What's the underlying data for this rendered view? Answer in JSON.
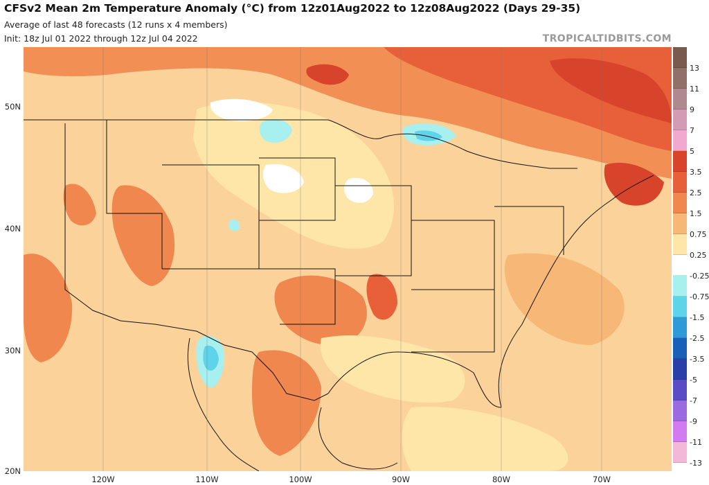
{
  "header": {
    "title": "CFSv2 Mean 2m Temperature Anomaly (°C) from 12z01Aug2022 to 12z08Aug2022 (Days 29-35)",
    "subtitle1": "Average of last 48 forecasts (12 runs x 4 members)",
    "subtitle2": "Init: 18z Jul 01 2022 through 12z Jul 04 2022",
    "brand": "TROPICALTIDBITS.COM"
  },
  "axes": {
    "lat_labels": [
      "50N",
      "40N",
      "30N",
      "20N"
    ],
    "lon_labels": [
      "120W",
      "110W",
      "100W",
      "90W",
      "80W",
      "70W"
    ]
  },
  "colorbar": {
    "labels": [
      "13",
      "11",
      "9",
      "7",
      "5",
      "3.5",
      "2.5",
      "1.5",
      "0.75",
      "0.25",
      "-0.25",
      "-0.75",
      "-1.5",
      "-2.5",
      "-3.5",
      "-5",
      "-7",
      "-9",
      "-11",
      "-13"
    ],
    "colors": [
      "#7a5a4e",
      "#92706a",
      "#b08890",
      "#d49bb6",
      "#f2a9d0",
      "#d8432c",
      "#e8603a",
      "#f0874e",
      "#f7b777",
      "#fde6a8",
      "#ffffff",
      "#a8efef",
      "#5ed3ea",
      "#2f9ad8",
      "#1a5fb8",
      "#2b3fa8",
      "#5a4cc4",
      "#9a6ae0",
      "#d27af0",
      "#f3b8d8",
      "#fde0e0"
    ]
  },
  "map": {
    "region": "Contiguous United States, Mexico, Gulf of Mexico and southern Canada",
    "colors": {
      "base": "#fbd29a",
      "light": "#fde6a8",
      "warm": "#f7b777",
      "hot": "#f0874e",
      "hotter": "#e8603a",
      "hottest": "#d8432c",
      "white": "#ffffff",
      "cool": "#a8efef",
      "cooler": "#5ed3ea"
    }
  }
}
